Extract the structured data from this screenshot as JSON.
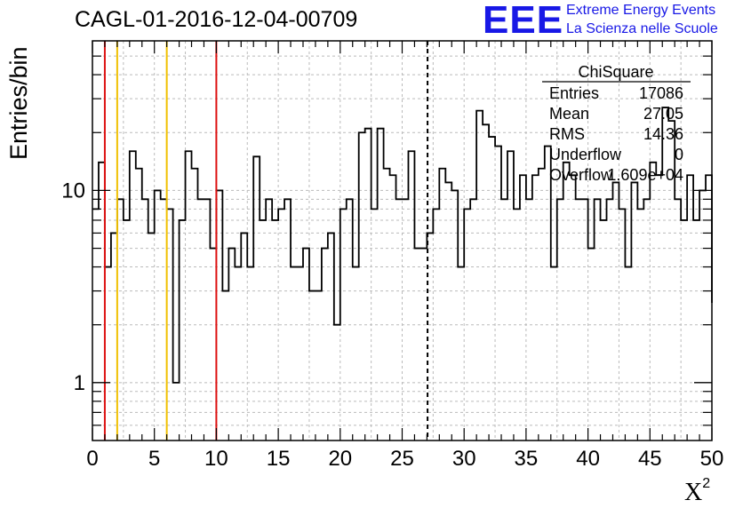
{
  "header": {
    "title": "CAGL-01-2016-12-04-00709",
    "logo_text": "EEE",
    "logo_line1": "Extreme Energy Events",
    "logo_line2": "La Scienza nelle Scuole",
    "brand_color": "#1818e6"
  },
  "stats_box": {
    "name": "ChiSquare",
    "rows": [
      {
        "label": "Entries",
        "value": "17086"
      },
      {
        "label": "Mean",
        "value": "27.05"
      },
      {
        "label": "RMS",
        "value": "14.36"
      },
      {
        "label": "Underflow",
        "value": "0"
      },
      {
        "label": "Overflow",
        "value": "1.609e+04"
      }
    ]
  },
  "chart_data": {
    "type": "histogram",
    "title": "CAGL-01-2016-12-04-00709",
    "xlabel": "X",
    "xlabel_superscript": "2",
    "ylabel": "Entries/bin",
    "xlim": [
      0,
      50
    ],
    "ylim": [
      0.5,
      60
    ],
    "yscale": "log",
    "grid": true,
    "bin_width": 0.5,
    "x_ticks": [
      "0",
      "5",
      "10",
      "15",
      "20",
      "25",
      "30",
      "35",
      "40",
      "45",
      "50"
    ],
    "y_ticks": [
      "1",
      "10"
    ],
    "values": [
      8,
      14,
      4,
      6,
      9,
      7,
      16,
      13,
      9,
      6,
      10,
      9,
      8,
      1,
      7,
      16,
      13,
      9,
      9,
      5,
      10,
      3,
      5,
      4,
      6,
      4,
      15,
      7,
      9,
      7,
      8,
      9,
      4,
      4,
      5,
      3,
      3,
      5,
      6,
      2,
      8,
      9,
      4,
      20,
      21,
      8,
      21,
      13,
      12,
      9,
      9,
      16,
      5,
      5,
      6,
      8,
      13,
      11,
      10,
      4,
      8,
      9,
      26,
      22,
      19,
      17,
      9,
      16,
      8,
      12,
      9,
      12,
      13,
      17,
      4,
      9,
      14,
      12,
      9,
      9,
      5,
      9,
      7,
      9,
      11,
      8,
      4,
      11,
      8,
      9,
      14,
      12,
      27,
      23,
      9,
      7,
      12,
      7,
      10,
      12
    ],
    "reference_lines": [
      {
        "x": 1,
        "color": "#dd1111",
        "style": "solid"
      },
      {
        "x": 2,
        "color": "#f0c000",
        "style": "solid"
      },
      {
        "x": 6,
        "color": "#f0c000",
        "style": "solid"
      },
      {
        "x": 10,
        "color": "#dd1111",
        "style": "solid"
      },
      {
        "x": 27.05,
        "color": "#000000",
        "style": "dashed"
      }
    ]
  }
}
